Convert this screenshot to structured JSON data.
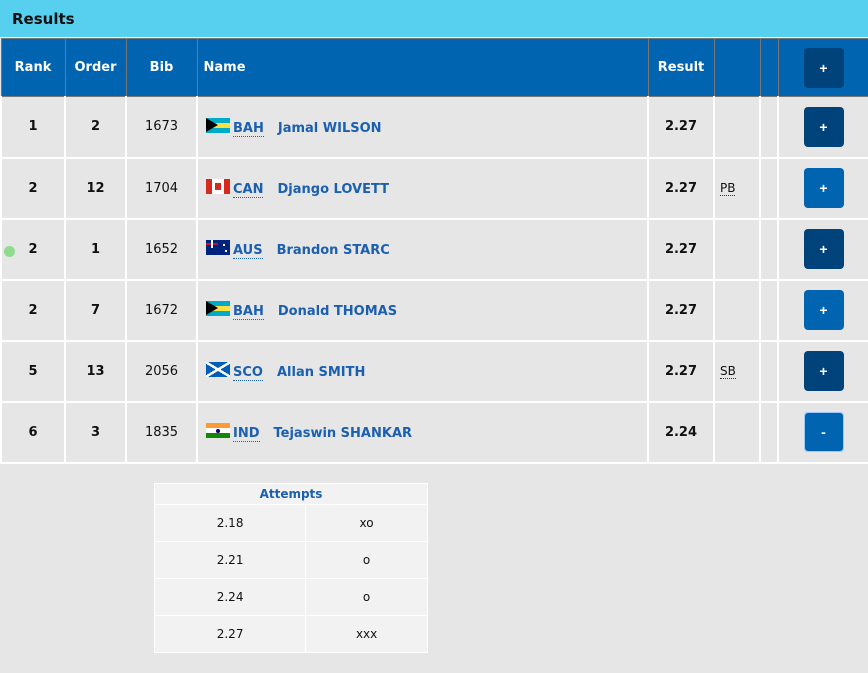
{
  "title": "Results",
  "headers": {
    "rank": "Rank",
    "order": "Order",
    "bib": "Bib",
    "name": "Name",
    "result": "Result",
    "expand": "+"
  },
  "colors": {
    "title_bar": "#57d0f0",
    "header": "#0064b0",
    "button_dark": "#00427a",
    "button_light": "#0064b0"
  },
  "rows": [
    {
      "rank": "1",
      "order": "2",
      "bib": "1673",
      "country": "BAH",
      "name": "Jamal WILSON",
      "result": "2.27",
      "mark": "",
      "button": "+",
      "active": false
    },
    {
      "rank": "2",
      "order": "12",
      "bib": "1704",
      "country": "CAN",
      "name": "Django LOVETT",
      "result": "2.27",
      "mark": "PB",
      "button": "+",
      "active": false
    },
    {
      "rank": "2",
      "order": "1",
      "bib": "1652",
      "country": "AUS",
      "name": "Brandon STARC",
      "result": "2.27",
      "mark": "",
      "button": "+",
      "active": true
    },
    {
      "rank": "2",
      "order": "7",
      "bib": "1672",
      "country": "BAH",
      "name": "Donald THOMAS",
      "result": "2.27",
      "mark": "",
      "button": "+",
      "active": false
    },
    {
      "rank": "5",
      "order": "13",
      "bib": "2056",
      "country": "SCO",
      "name": "Allan SMITH",
      "result": "2.27",
      "mark": "SB",
      "button": "+",
      "active": false
    },
    {
      "rank": "6",
      "order": "3",
      "bib": "1835",
      "country": "IND",
      "name": "Tejaswin SHANKAR",
      "result": "2.24",
      "mark": "",
      "button": "-",
      "active": false
    }
  ],
  "attempts": {
    "title": "Attempts",
    "rows": [
      {
        "height": "2.18",
        "result": "xo"
      },
      {
        "height": "2.21",
        "result": "o"
      },
      {
        "height": "2.24",
        "result": "o"
      },
      {
        "height": "2.27",
        "result": "xxx"
      }
    ]
  }
}
